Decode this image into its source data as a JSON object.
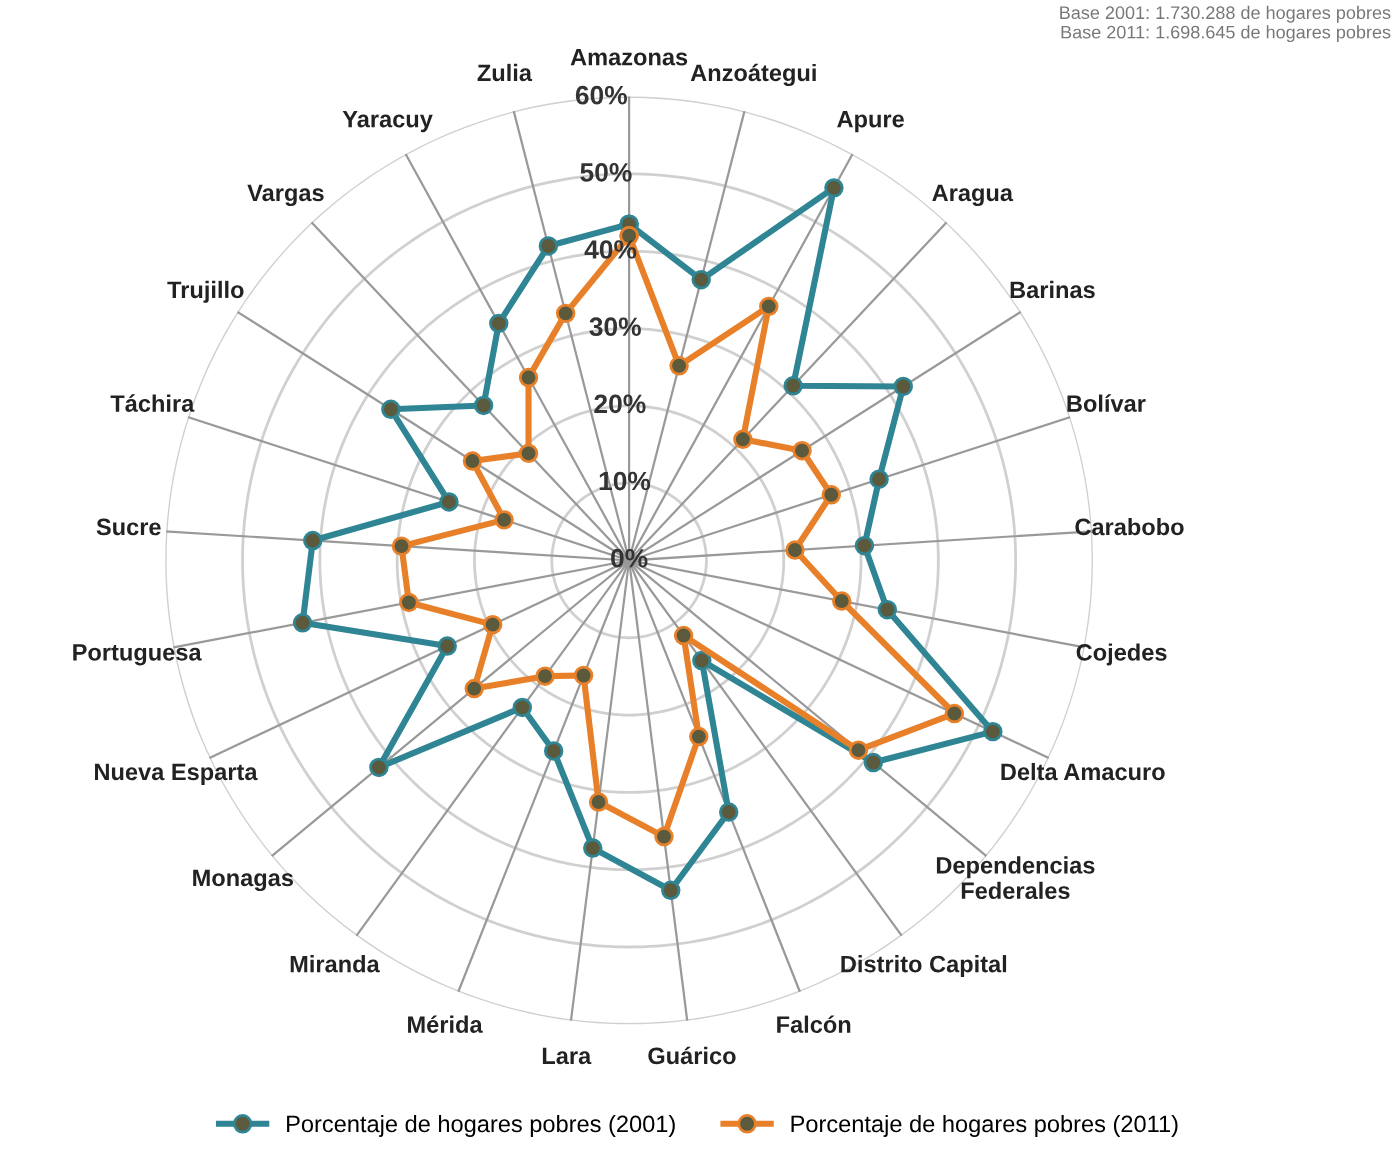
{
  "chart_data": {
    "type": "radar",
    "categories": [
      "Amazonas",
      "Anzoátegui",
      "Apure",
      "Aragua",
      "Barinas",
      "Bolívar",
      "Carabobo",
      "Cojedes",
      "Delta Amacuro",
      "Dependencias\nFederales",
      "Distrito Capital",
      "Falcón",
      "Guárico",
      "Lara",
      "Mérida",
      "Miranda",
      "Monagas",
      "Nueva Esparta",
      "Portuguesa",
      "Sucre",
      "Táchira",
      "Trujillo",
      "Vargas",
      "Yaracuy",
      "Zulia"
    ],
    "series": [
      {
        "name": "Porcentaje de hogares pobres (2001)",
        "color": "#2f8594",
        "values": [
          43.5,
          37.5,
          55,
          31,
          42,
          34,
          30.5,
          34,
          52,
          41,
          16,
          35,
          43,
          37.5,
          26.5,
          23.5,
          42,
          26,
          43,
          41,
          24.5,
          36.5,
          27.5,
          35,
          42
        ]
      },
      {
        "name": "Porcentaje de hogares pobres (2011)",
        "color": "#e8802a",
        "values": [
          42,
          26,
          37.5,
          21.5,
          26.5,
          27.5,
          21.5,
          28,
          46.5,
          38.5,
          12,
          24.5,
          36,
          31.5,
          16,
          18.5,
          26,
          19.5,
          29,
          29.5,
          17,
          24,
          19,
          27,
          33
        ]
      }
    ],
    "ylim": [
      0,
      60
    ],
    "yticks": [
      {
        "value": 0,
        "label": "0%"
      },
      {
        "value": 10,
        "label": "10%"
      },
      {
        "value": 20,
        "label": "20%"
      },
      {
        "value": 30,
        "label": "30%"
      },
      {
        "value": 40,
        "label": "40%"
      },
      {
        "value": 50,
        "label": "50%"
      },
      {
        "value": 60,
        "label": "60%"
      }
    ],
    "grid": true,
    "marker": "circle",
    "line_style": "solid",
    "legend": "bottom",
    "annotations": [
      "Base 2001: 1.730.288 de hogares pobres",
      "Base 2011: 1.698.645 de hogares pobres"
    ]
  }
}
